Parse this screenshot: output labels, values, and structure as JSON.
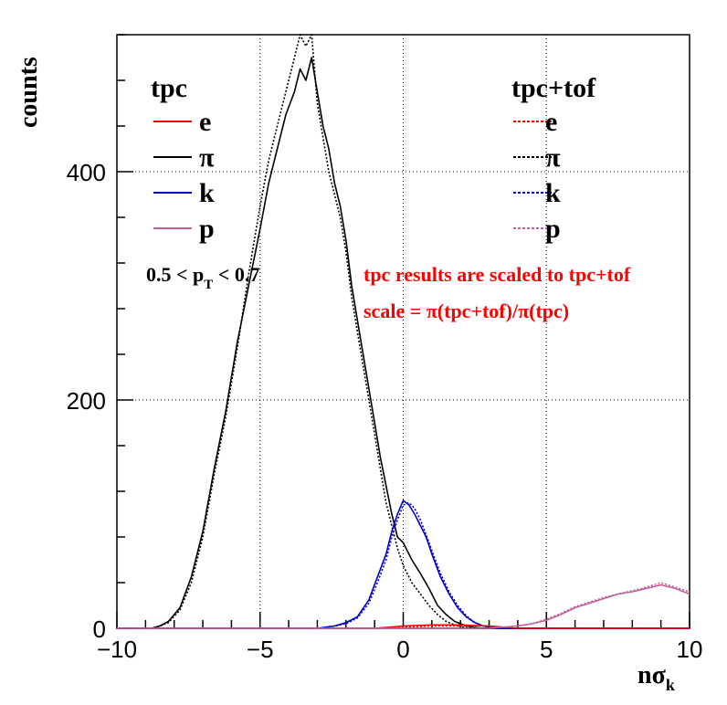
{
  "chart_data": {
    "type": "line",
    "title": "",
    "xlabel": "nσ",
    "xlabel_sub": "k",
    "ylabel": "counts",
    "xlim": [
      -10,
      10
    ],
    "ylim": [
      0,
      520
    ],
    "x_ticks": [
      -10,
      -5,
      0,
      5,
      10
    ],
    "x_tick_labels": [
      "−10",
      "−5",
      "0",
      "5",
      "10"
    ],
    "y_ticks": [
      0,
      200,
      400
    ],
    "y_tick_labels": [
      "0",
      "200",
      "400"
    ],
    "grid": true,
    "legend_left": {
      "header": "tpc",
      "entries": [
        {
          "label": "e",
          "color": "#ff0000",
          "dash": "solid"
        },
        {
          "label": "π",
          "color": "#000000",
          "dash": "solid"
        },
        {
          "label": "k",
          "color": "#0000cc",
          "dash": "solid"
        },
        {
          "label": "p",
          "color": "#c0609a",
          "dash": "solid"
        }
      ]
    },
    "legend_right": {
      "header": "tpc+tof",
      "entries": [
        {
          "label": "e",
          "color": "#ff0000",
          "dash": "dotted"
        },
        {
          "label": "π",
          "color": "#000000",
          "dash": "dotted"
        },
        {
          "label": "k",
          "color": "#0000cc",
          "dash": "dotted"
        },
        {
          "label": "p",
          "color": "#c0609a",
          "dash": "dotted"
        }
      ]
    },
    "pt_range": {
      "prefix": "0.5 < p",
      "sub": "T",
      "suffix": " < 0.7"
    },
    "annotations": [
      {
        "text": "tpc results are scaled to tpc+tof",
        "color": "#ff0000"
      },
      {
        "text": "scale =  π(tpc+tof)/π(tpc)",
        "color": "#ff0000"
      }
    ],
    "series": [
      {
        "name": "π tpc",
        "color": "#000000",
        "dash": "solid",
        "x": [
          -10,
          -8.8,
          -8.5,
          -8.2,
          -7.8,
          -7.4,
          -7.0,
          -6.6,
          -6.2,
          -5.8,
          -5.4,
          -5.0,
          -4.7,
          -4.4,
          -4.1,
          -3.8,
          -3.6,
          -3.4,
          -3.2,
          -3.0,
          -2.8,
          -2.6,
          -2.4,
          -2.2,
          -2.0,
          -1.8,
          -1.6,
          -1.4,
          -1.2,
          -1.0,
          -0.8,
          -0.6,
          -0.4,
          -0.2,
          0,
          0.3,
          0.6,
          0.9,
          1.2,
          1.5,
          1.8,
          2.1,
          2.4,
          2.8,
          3.2,
          4,
          5,
          10
        ],
        "y": [
          0,
          0,
          2,
          6,
          18,
          45,
          85,
          140,
          190,
          250,
          300,
          350,
          390,
          420,
          450,
          470,
          490,
          480,
          500,
          470,
          440,
          420,
          390,
          370,
          340,
          300,
          270,
          240,
          210,
          180,
          150,
          125,
          100,
          80,
          75,
          60,
          48,
          35,
          20,
          12,
          6,
          3,
          1,
          0,
          0,
          0,
          0,
          0
        ]
      },
      {
        "name": "π tpc+tof",
        "color": "#000000",
        "dash": "dotted",
        "x": [
          -10,
          -8.8,
          -8.5,
          -8.2,
          -7.8,
          -7.4,
          -7.0,
          -6.6,
          -6.2,
          -5.8,
          -5.4,
          -5.0,
          -4.7,
          -4.4,
          -4.1,
          -3.8,
          -3.6,
          -3.4,
          -3.2,
          -3.0,
          -2.8,
          -2.6,
          -2.4,
          -2.2,
          -2.0,
          -1.8,
          -1.6,
          -1.4,
          -1.2,
          -1.0,
          -0.8,
          -0.6,
          -0.4,
          -0.2,
          0,
          0.3,
          0.6,
          0.9,
          1.2,
          1.5,
          1.8,
          2.1,
          2.4,
          2.8,
          3.2,
          4,
          5,
          10
        ],
        "y": [
          0,
          0,
          2,
          5,
          16,
          40,
          80,
          135,
          185,
          245,
          310,
          370,
          410,
          440,
          470,
          500,
          520,
          510,
          520,
          460,
          430,
          400,
          380,
          360,
          330,
          290,
          260,
          230,
          200,
          170,
          140,
          110,
          90,
          70,
          55,
          40,
          30,
          20,
          12,
          6,
          3,
          1,
          0,
          0,
          0,
          0,
          0,
          0
        ]
      },
      {
        "name": "k tpc",
        "color": "#0000cc",
        "dash": "solid",
        "x": [
          -10,
          -3,
          -2.4,
          -2.0,
          -1.6,
          -1.2,
          -0.9,
          -0.6,
          -0.4,
          -0.2,
          0,
          0.2,
          0.4,
          0.6,
          0.8,
          1.0,
          1.3,
          1.6,
          1.9,
          2.2,
          2.5,
          2.8,
          3.2,
          10
        ],
        "y": [
          0,
          0,
          2,
          5,
          10,
          25,
          45,
          65,
          85,
          100,
          112,
          108,
          100,
          90,
          80,
          65,
          45,
          30,
          18,
          10,
          5,
          2,
          0,
          0
        ]
      },
      {
        "name": "k tpc+tof",
        "color": "#0000cc",
        "dash": "dotted",
        "x": [
          -10,
          -3,
          -2.4,
          -2.0,
          -1.6,
          -1.2,
          -0.9,
          -0.6,
          -0.4,
          -0.2,
          0,
          0.2,
          0.4,
          0.6,
          0.8,
          1.0,
          1.3,
          1.6,
          1.9,
          2.2,
          2.5,
          2.8,
          3.2,
          10
        ],
        "y": [
          0,
          0,
          2,
          4,
          9,
          22,
          40,
          60,
          80,
          95,
          108,
          110,
          105,
          95,
          82,
          68,
          48,
          32,
          20,
          11,
          5,
          2,
          0,
          0
        ]
      },
      {
        "name": "e tpc",
        "color": "#ff0000",
        "dash": "solid",
        "x": [
          -10,
          -1,
          0,
          1,
          2,
          3,
          3.5,
          4,
          10
        ],
        "y": [
          0,
          0,
          2,
          3,
          3,
          2,
          1,
          0,
          0
        ]
      },
      {
        "name": "e tpc+tof",
        "color": "#ff0000",
        "dash": "dotted",
        "x": [
          -10,
          -1,
          0,
          1,
          2,
          3,
          3.5,
          4,
          10
        ],
        "y": [
          0,
          0,
          1,
          2,
          2,
          2,
          1,
          0,
          0
        ]
      },
      {
        "name": "p tpc",
        "color": "#c0609a",
        "dash": "solid",
        "x": [
          -10,
          3,
          4,
          4.5,
          5,
          5.5,
          6,
          6.5,
          7,
          7.5,
          8,
          8.5,
          9,
          9.5,
          10
        ],
        "y": [
          0,
          0,
          2,
          4,
          7,
          12,
          18,
          22,
          26,
          30,
          32,
          35,
          38,
          35,
          30
        ]
      },
      {
        "name": "p tpc+tof",
        "color": "#c0609a",
        "dash": "dotted",
        "x": [
          -10,
          3,
          4,
          4.5,
          5,
          5.5,
          6,
          6.5,
          7,
          7.5,
          8,
          8.5,
          9,
          9.5,
          10
        ],
        "y": [
          0,
          0,
          2,
          4,
          8,
          13,
          19,
          23,
          27,
          30,
          33,
          36,
          40,
          36,
          32
        ]
      }
    ]
  }
}
